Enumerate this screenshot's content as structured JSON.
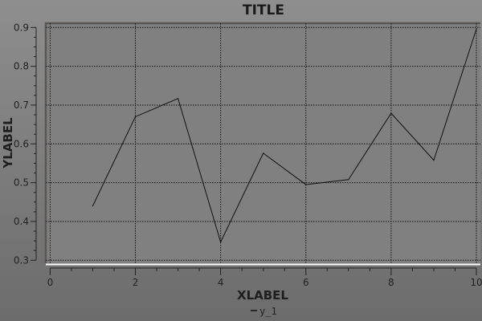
{
  "chart_data": {
    "type": "line",
    "title": "TITLE",
    "xlabel": "XLABEL",
    "ylabel": "YLABEL",
    "xlim": [
      0,
      10
    ],
    "ylim": [
      0.3,
      0.9
    ],
    "xticks": [
      "0",
      "2",
      "4",
      "6",
      "8",
      "10"
    ],
    "yticks": [
      "0.3",
      "0.4",
      "0.5",
      "0.6",
      "0.7",
      "0.8",
      "0.9"
    ],
    "grid": true,
    "legend_placement": "bottom",
    "x": [
      1,
      2,
      3,
      4,
      5,
      6,
      7,
      8,
      9,
      10
    ],
    "series": [
      {
        "name": "y_1",
        "color": "#111111",
        "values": [
          0.44,
          0.67,
          0.717,
          0.347,
          0.576,
          0.495,
          0.508,
          0.679,
          0.558,
          0.896
        ]
      }
    ]
  }
}
